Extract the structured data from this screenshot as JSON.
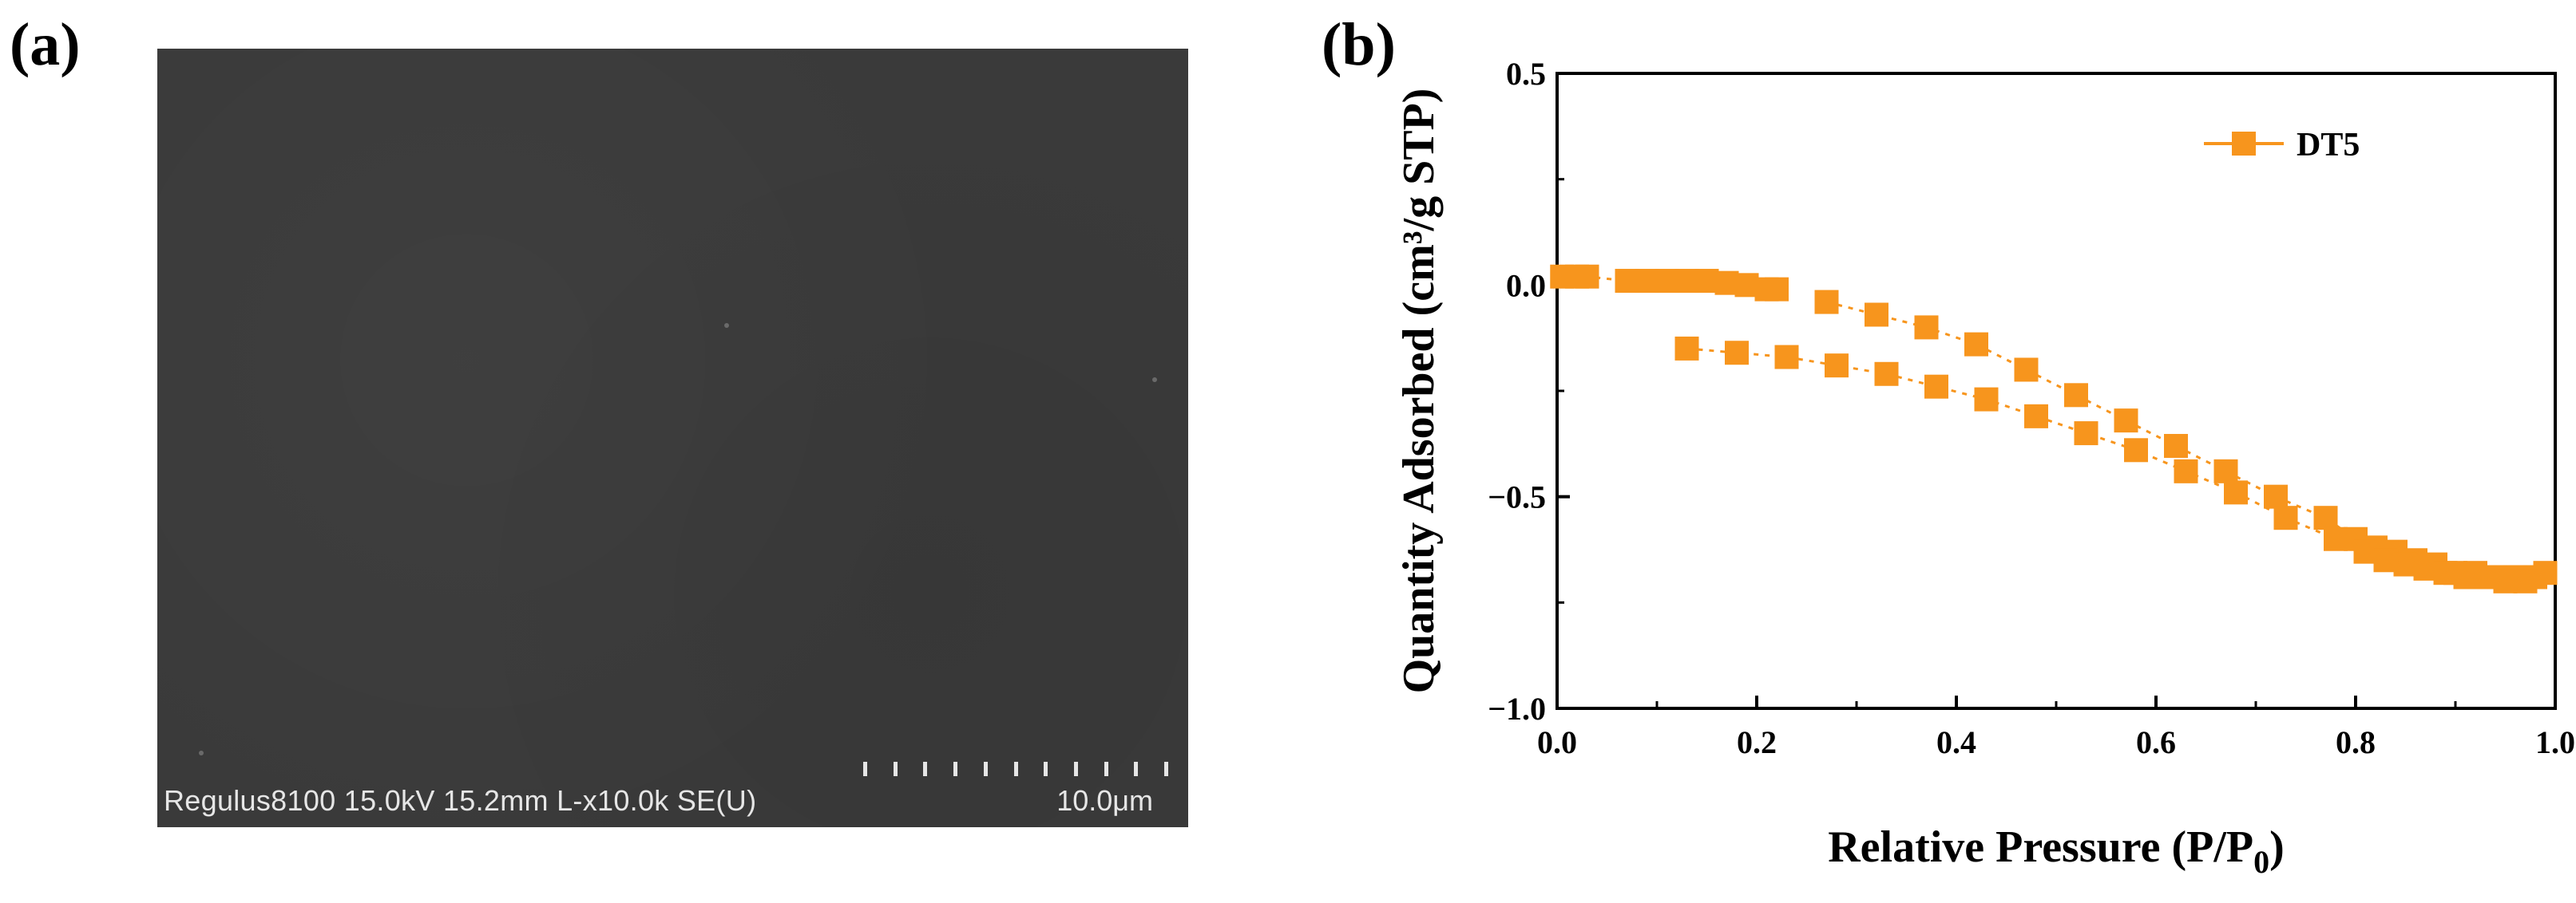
{
  "panels": {
    "a_label": "(a)",
    "b_label": "(b)"
  },
  "sem": {
    "info": "Regulus8100 15.0kV 15.2mm L-x10.0k SE(U)",
    "scale_bar": "10.0μm",
    "background_color": "#3a3a3a"
  },
  "chart_data": {
    "type": "scatter",
    "title": "",
    "xlabel": "Relative Pressure (P/P",
    "xlabel_sub": "0",
    "xlabel_end": ")",
    "ylabel": "Quantity Adsorbed (cm³/g STP)",
    "xlim": [
      0.0,
      1.0
    ],
    "ylim": [
      -1.0,
      0.5
    ],
    "xticks": [
      "0.0",
      "0.2",
      "0.4",
      "0.6",
      "0.8",
      "1.0"
    ],
    "yticks": [
      "-1.0",
      "-0.5",
      "0.0",
      "0.5"
    ],
    "legend": "top-right",
    "color": "#f7951d",
    "series": [
      {
        "name": "DT5",
        "adsorption": {
          "x": [
            0.005,
            0.02,
            0.03,
            0.07,
            0.09,
            0.11,
            0.13,
            0.15,
            0.17,
            0.19,
            0.21,
            0.22
          ],
          "y": [
            0.02,
            0.02,
            0.02,
            0.01,
            0.01,
            0.01,
            0.01,
            0.01,
            0.005,
            0.0,
            -0.01,
            -0.01
          ]
        },
        "desorption_upper": {
          "x": [
            0.27,
            0.32,
            0.37,
            0.42,
            0.47,
            0.52,
            0.57,
            0.62,
            0.67,
            0.72,
            0.77,
            0.8,
            0.82,
            0.84,
            0.86,
            0.88,
            0.9,
            0.92,
            0.94,
            0.96,
            0.98,
            0.99
          ],
          "y": [
            -0.04,
            -0.07,
            -0.1,
            -0.14,
            -0.2,
            -0.26,
            -0.32,
            -0.38,
            -0.44,
            -0.5,
            -0.55,
            -0.6,
            -0.62,
            -0.63,
            -0.65,
            -0.66,
            -0.68,
            -0.68,
            -0.69,
            -0.69,
            -0.69,
            -0.68
          ]
        },
        "desorption_lower": {
          "x": [
            0.13,
            0.18,
            0.23,
            0.28,
            0.33,
            0.38,
            0.43,
            0.48,
            0.53,
            0.58,
            0.63,
            0.68,
            0.73,
            0.78,
            0.81,
            0.83,
            0.85,
            0.87,
            0.89,
            0.91,
            0.93,
            0.95,
            0.97
          ],
          "y": [
            -0.15,
            -0.16,
            -0.17,
            -0.19,
            -0.21,
            -0.24,
            -0.27,
            -0.31,
            -0.35,
            -0.39,
            -0.44,
            -0.49,
            -0.55,
            -0.6,
            -0.63,
            -0.65,
            -0.66,
            -0.67,
            -0.68,
            -0.69,
            -0.69,
            -0.7,
            -0.7
          ]
        }
      }
    ]
  }
}
